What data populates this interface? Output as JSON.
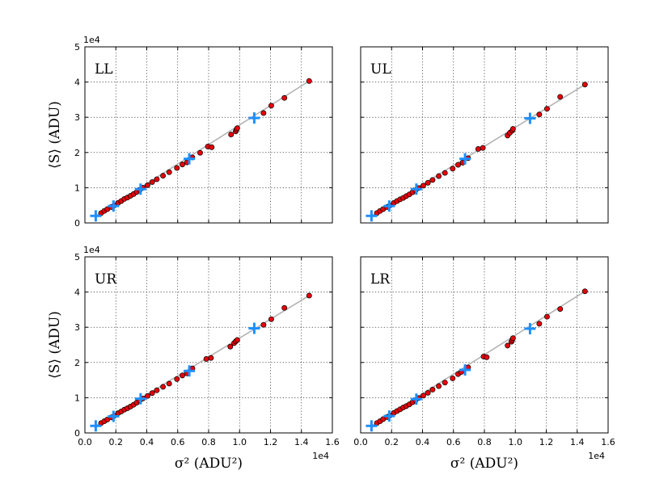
{
  "chart_data": [
    {
      "type": "scatter",
      "panel_label": "LL",
      "xlabel": "",
      "ylabel": "⟨S⟩ (ADU)",
      "xlim": [
        0,
        16000
      ],
      "ylim": [
        0,
        50000
      ],
      "x_ticks": [
        "",
        "",
        "",
        "",
        "",
        "",
        "",
        "",
        ""
      ],
      "y_ticks": [
        "0",
        "1",
        "2",
        "3",
        "4",
        "5"
      ],
      "x_exponent": "",
      "y_exponent": "1e4",
      "grid": true,
      "fit_line": {
        "x": [
          700,
          14500
        ],
        "y": [
          2000,
          40300
        ]
      },
      "series": [
        {
          "marker": "red-circle",
          "x": [
            1050,
            1250,
            1450,
            1700,
            1900,
            2150,
            2350,
            2550,
            2750,
            2950,
            3150,
            3350,
            3550,
            3750,
            4050,
            4350,
            4650,
            5050,
            5450,
            5950,
            6300,
            6600,
            6950,
            7450,
            7950,
            8200,
            9450,
            9750,
            9800,
            9850,
            11550,
            12050,
            12900,
            14500
          ],
          "y": [
            2800,
            3400,
            3900,
            4500,
            5000,
            5700,
            6200,
            6800,
            7200,
            7700,
            8200,
            8800,
            9400,
            10000,
            10700,
            11600,
            12400,
            13400,
            14400,
            15600,
            16600,
            17200,
            18600,
            19900,
            21700,
            21500,
            25100,
            26000,
            26500,
            26900,
            31200,
            33300,
            35500,
            40300
          ]
        },
        {
          "name": "",
          "marker": "blue-cross",
          "x": [
            700,
            1850,
            3600,
            6750,
            10950
          ],
          "y": [
            2000,
            4800,
            9600,
            18200,
            29800
          ]
        }
      ]
    },
    {
      "type": "scatter",
      "panel_label": "UL",
      "xlabel": "",
      "ylabel": "",
      "xlim": [
        0,
        16000
      ],
      "ylim": [
        0,
        50000
      ],
      "x_ticks": [
        "",
        "",
        "",
        "",
        "",
        "",
        "",
        "",
        ""
      ],
      "y_ticks": [
        "",
        "",
        "",
        "",
        "",
        ""
      ],
      "x_exponent": "",
      "y_exponent": "",
      "grid": true,
      "fit_line": {
        "x": [
          700,
          14500
        ],
        "y": [
          2000,
          39300
        ]
      },
      "series": [
        {
          "marker": "red-circle",
          "x": [
            1050,
            1250,
            1450,
            1700,
            1900,
            2150,
            2350,
            2550,
            2750,
            2950,
            3150,
            3350,
            3550,
            3750,
            4050,
            4350,
            4650,
            5050,
            5450,
            5950,
            6300,
            6600,
            6950,
            7600,
            7900,
            9500,
            9650,
            9800,
            9850,
            11550,
            12050,
            12900,
            14500
          ],
          "y": [
            2800,
            3400,
            3900,
            4500,
            5000,
            5700,
            6200,
            6700,
            7100,
            7600,
            8100,
            8700,
            9300,
            9900,
            10600,
            11400,
            12200,
            13300,
            14200,
            15400,
            16500,
            17100,
            18400,
            21000,
            21300,
            24800,
            25600,
            26200,
            26700,
            30800,
            32400,
            35800,
            39300
          ]
        },
        {
          "marker": "blue-cross",
          "x": [
            700,
            1850,
            3600,
            6750,
            10950
          ],
          "y": [
            2000,
            4800,
            9600,
            18200,
            29700
          ]
        }
      ]
    },
    {
      "type": "scatter",
      "panel_label": "UR",
      "xlabel": "σ² (ADU²)",
      "ylabel": "⟨S⟩ (ADU)",
      "xlim": [
        0,
        16000
      ],
      "ylim": [
        0,
        50000
      ],
      "x_ticks": [
        "0.0",
        "0.2",
        "0.4",
        "0.6",
        "0.8",
        "1.0",
        "1.2",
        "1.4",
        "1.6"
      ],
      "y_ticks": [
        "0",
        "1",
        "2",
        "3",
        "4",
        "5"
      ],
      "x_exponent": "1e4",
      "y_exponent": "1e4",
      "grid": true,
      "fit_line": {
        "x": [
          700,
          14500
        ],
        "y": [
          2000,
          39000
        ]
      },
      "series": [
        {
          "marker": "red-circle",
          "x": [
            1050,
            1250,
            1450,
            1700,
            1900,
            2150,
            2350,
            2550,
            2750,
            2950,
            3150,
            3350,
            3550,
            3750,
            4050,
            4350,
            4650,
            5050,
            5450,
            5950,
            6300,
            6600,
            6950,
            7850,
            8150,
            9400,
            9650,
            9750,
            9850,
            11550,
            12050,
            12900,
            14500
          ],
          "y": [
            2800,
            3300,
            3800,
            4400,
            4900,
            5600,
            6100,
            6600,
            7000,
            7500,
            8000,
            8600,
            9200,
            9800,
            10500,
            11300,
            12100,
            13100,
            14000,
            15300,
            16300,
            16900,
            18300,
            21000,
            21300,
            24500,
            25500,
            26000,
            26400,
            30700,
            32300,
            35500,
            39000
          ]
        },
        {
          "marker": "blue-cross",
          "x": [
            700,
            1850,
            3600,
            6750,
            10950
          ],
          "y": [
            2000,
            4700,
            9700,
            17600,
            29700
          ]
        }
      ]
    },
    {
      "type": "scatter",
      "panel_label": "LR",
      "xlabel": "σ² (ADU²)",
      "ylabel": "",
      "xlim": [
        0,
        16000
      ],
      "ylim": [
        0,
        50000
      ],
      "x_ticks": [
        "0.0",
        "0.2",
        "0.4",
        "0.6",
        "0.8",
        "1.0",
        "1.2",
        "1.4",
        "1.6"
      ],
      "y_ticks": [
        "",
        "",
        "",
        "",
        "",
        ""
      ],
      "x_exponent": "1e4",
      "y_exponent": "",
      "grid": true,
      "fit_line": {
        "x": [
          700,
          14500
        ],
        "y": [
          2000,
          40200
        ]
      },
      "series": [
        {
          "marker": "red-circle",
          "x": [
            1050,
            1250,
            1450,
            1700,
            1900,
            2150,
            2350,
            2550,
            2750,
            2950,
            3150,
            3350,
            3550,
            3750,
            4050,
            4350,
            4650,
            5050,
            5450,
            5950,
            6300,
            6500,
            6950,
            7950,
            8150,
            9500,
            9750,
            9800,
            9850,
            11550,
            12050,
            12900,
            14500
          ],
          "y": [
            2800,
            3300,
            3900,
            4500,
            5000,
            5700,
            6200,
            6700,
            7200,
            7600,
            8100,
            8700,
            9300,
            9900,
            10600,
            11400,
            12300,
            13300,
            14300,
            15500,
            16700,
            17300,
            18600,
            21700,
            21500,
            24800,
            25900,
            26400,
            26900,
            31000,
            33000,
            35200,
            40200
          ]
        },
        {
          "marker": "blue-cross",
          "x": [
            700,
            1850,
            3600,
            6750,
            10950
          ],
          "y": [
            2000,
            4800,
            9600,
            17900,
            29600
          ]
        }
      ]
    }
  ]
}
